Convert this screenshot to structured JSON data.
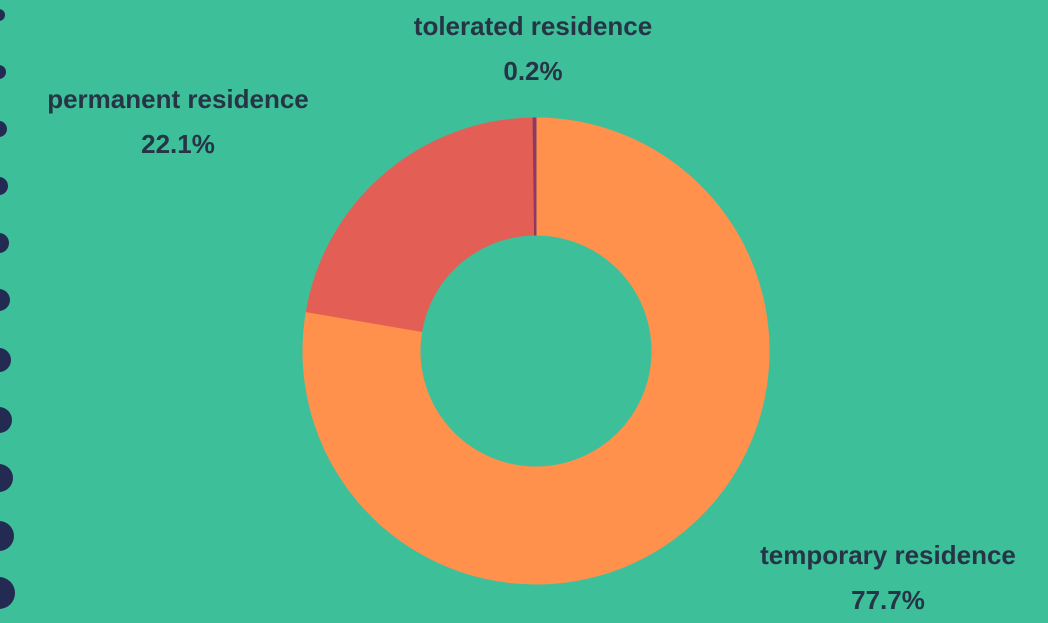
{
  "chart_data": {
    "type": "donut",
    "categories": [
      "temporary residence",
      "permanent residence",
      "tolerated residence"
    ],
    "values": [
      77.7,
      22.1,
      0.2
    ],
    "value_labels": [
      "77.7%",
      "22.1%",
      "0.2%"
    ],
    "colors": [
      "#ff914d",
      "#e35f55",
      "#8b3a62"
    ]
  }
}
